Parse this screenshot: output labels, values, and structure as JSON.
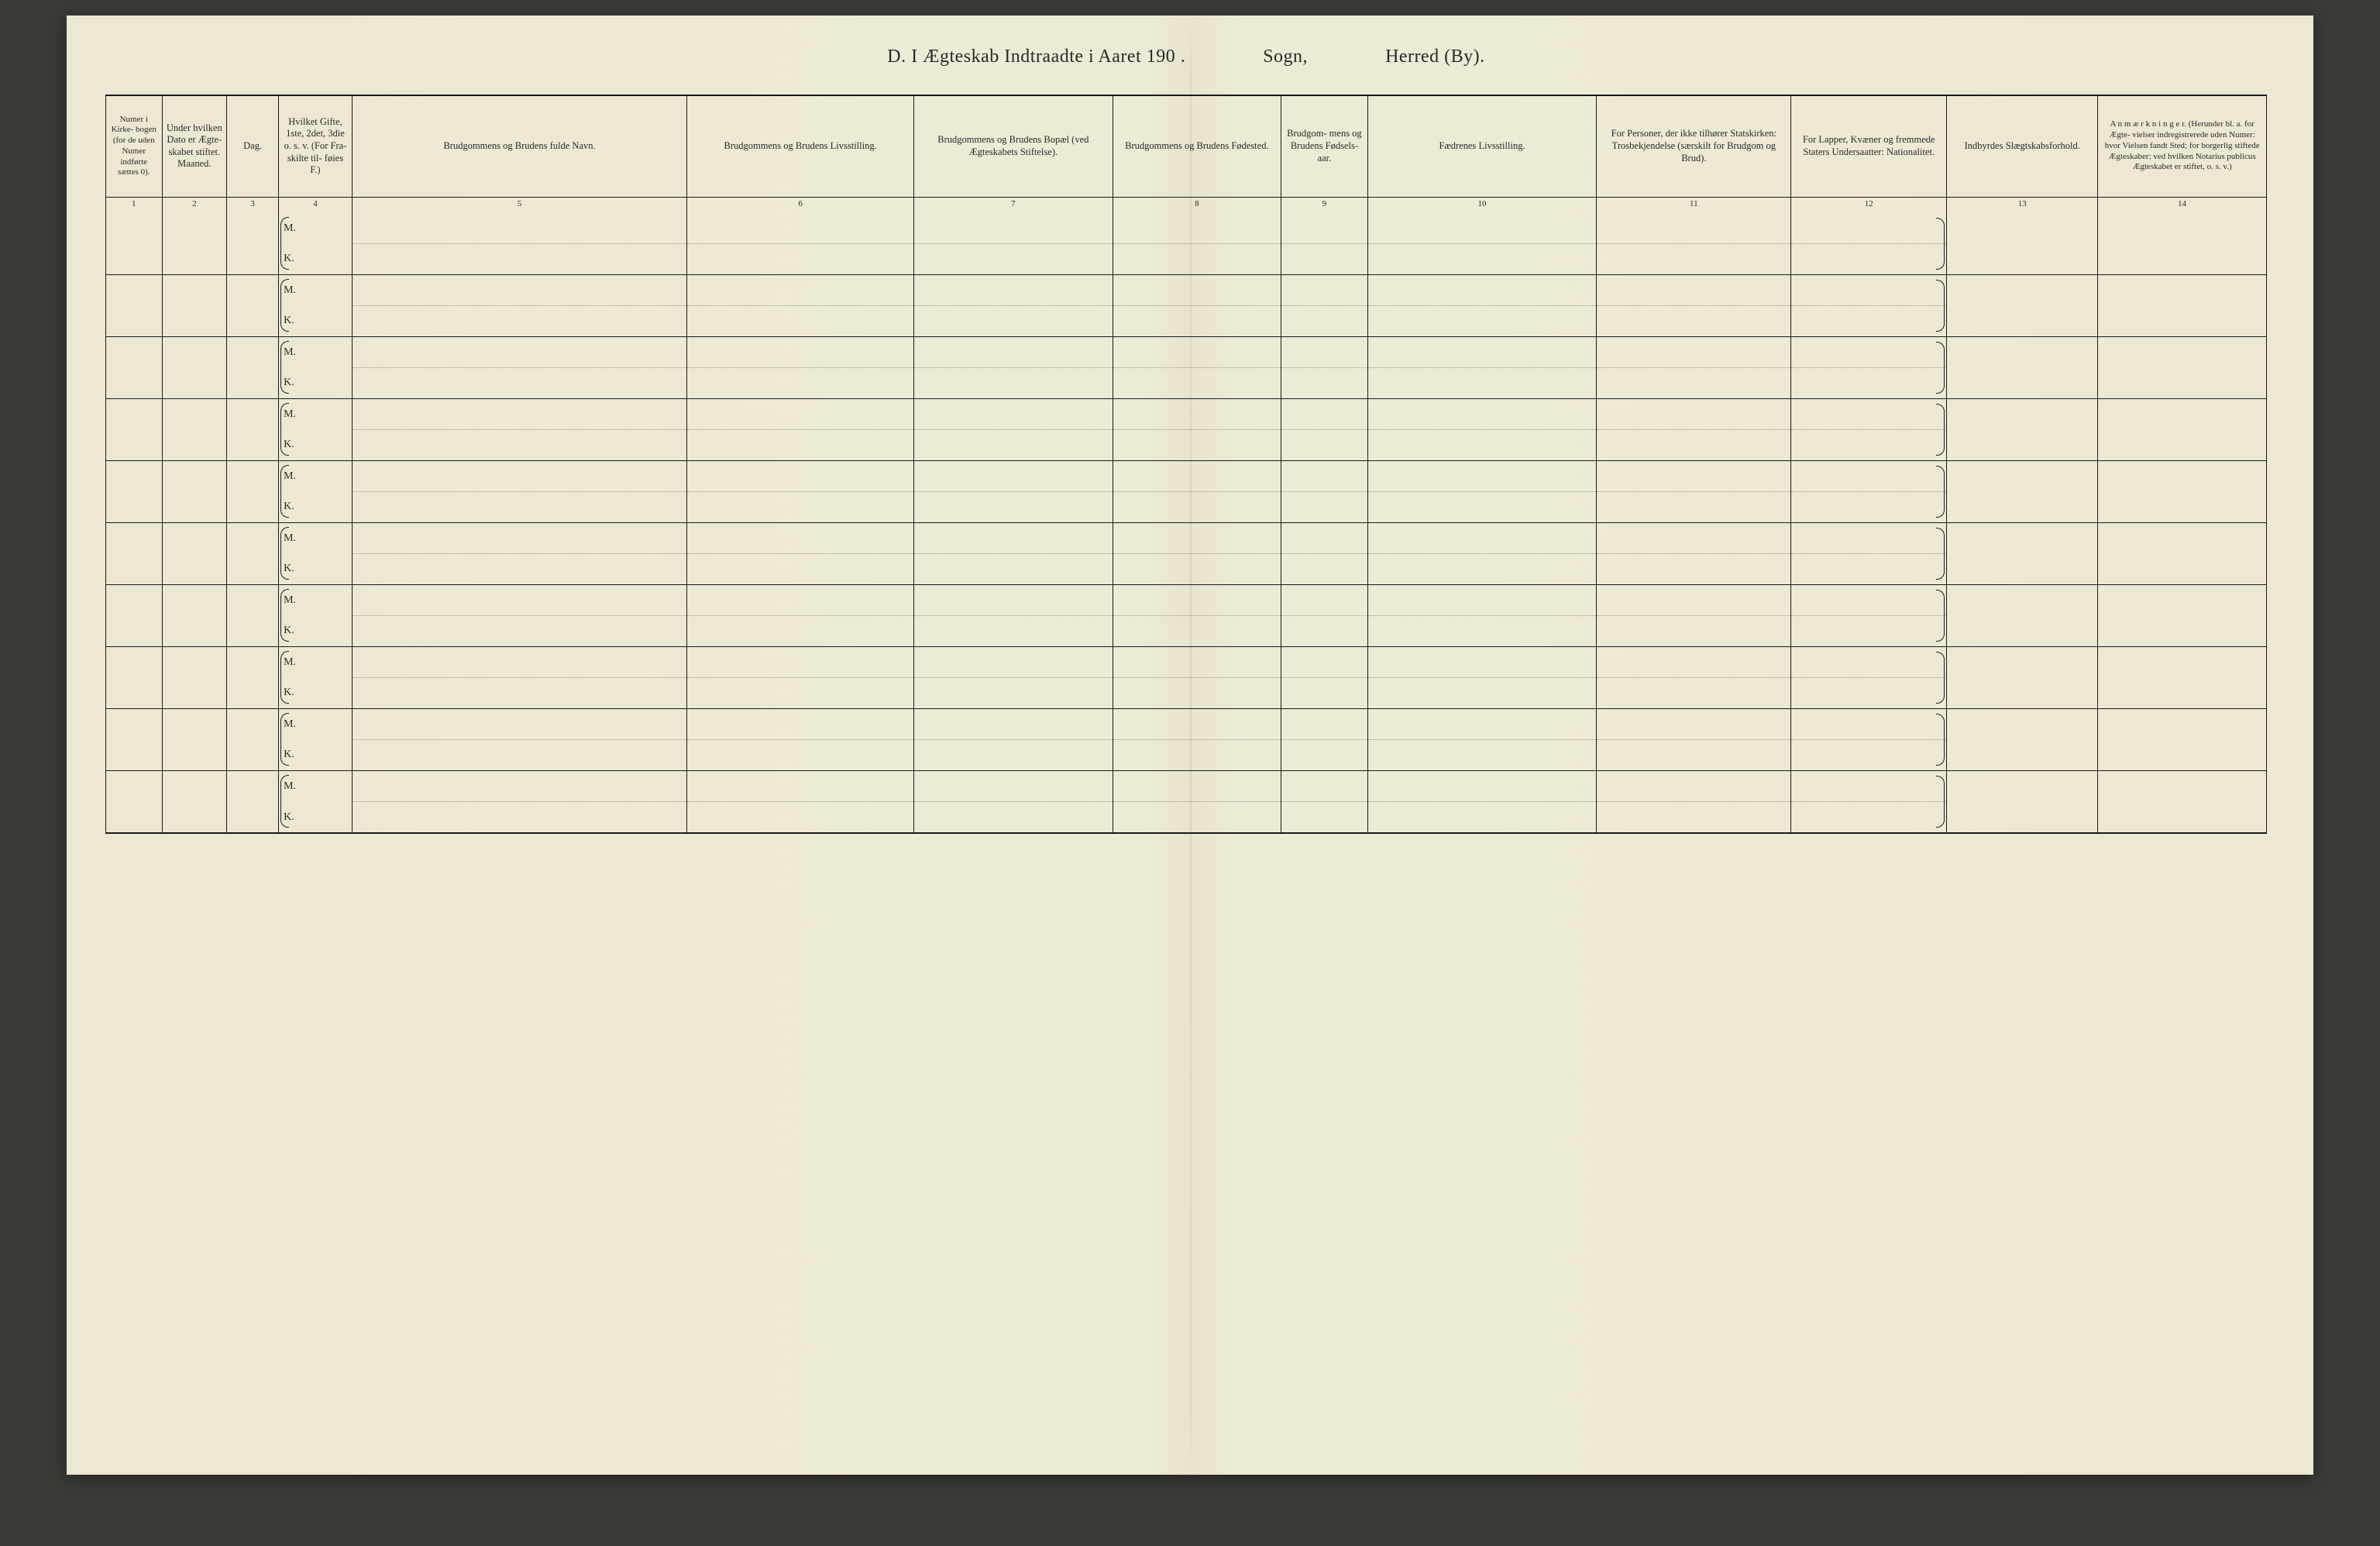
{
  "header": {
    "left": "D.   I Ægteskab Indtraadte i Aaret 190   .",
    "middle": "Sogn,",
    "right": "Herred (By)."
  },
  "row_marks": {
    "m": "M.",
    "k": "K."
  },
  "row_count": 10,
  "colors": {
    "paper": "#ede8d4",
    "ink": "#1a1a1a",
    "text": "#2a2a2a"
  },
  "columns": [
    {
      "n": "1",
      "head": "Numer i Kirke- bogen (for de uden Numer indførte sættes 0)."
    },
    {
      "n": "2",
      "head": "Under hvilken Dato er Ægte- skabet stiftet.\nMaaned."
    },
    {
      "n": "3",
      "head": "Dag."
    },
    {
      "n": "4",
      "head": "Hvilket Gifte, 1ste, 2det, 3die o. s. v. (For Fra- skilte til- føies F.)"
    },
    {
      "n": "5",
      "head": "Brudgommens og Brudens fulde Navn."
    },
    {
      "n": "6",
      "head": "Brudgommens og Brudens Livsstilling."
    },
    {
      "n": "7",
      "head": "Brudgommens og Brudens Bopæl (ved Ægteskabets Stiftelse)."
    },
    {
      "n": "8",
      "head": "Brudgommens og Brudens Fødested."
    },
    {
      "n": "9",
      "head": "Brudgom- mens og Brudens Fødsels- aar."
    },
    {
      "n": "10",
      "head": "Fædrenes Livsstilling."
    },
    {
      "n": "11",
      "head": "For Personer, der ikke tilhører Statskirken: Trosbekjendelse (særskilt for Brudgom og Brud)."
    },
    {
      "n": "12",
      "head": "For Lapper, Kvæner og fremmede Staters Undersaatter: Nationalitet."
    },
    {
      "n": "13",
      "head": "Indbyrdes Slægtskabsforhold."
    },
    {
      "n": "14",
      "head": "A n m æ r k n i n g e r. (Herunder bl. a. for Ægte- vielser indregistrerede uden Numer: hvor Vielsen fandt Sted; for borgerlig stiftede Ægteskaber: ved hvilken Notarius publicus Ægteskabet er stiftet, o. s. v.)"
    }
  ]
}
